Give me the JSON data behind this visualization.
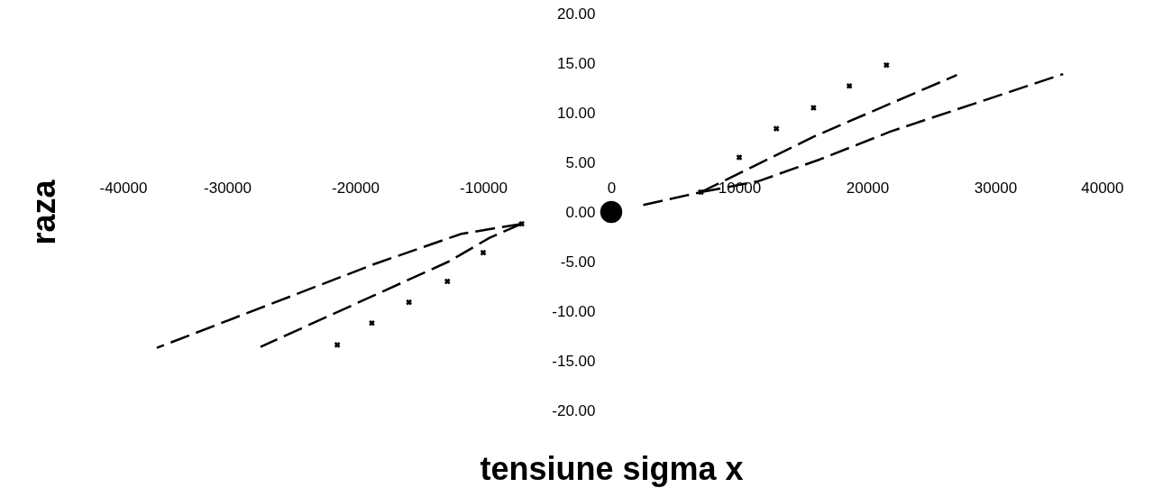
{
  "chart_data": {
    "type": "line",
    "xlabel": "tensiune sigma x",
    "ylabel": "raza",
    "xlim": [
      -40000,
      40000
    ],
    "xticks": [
      -40000,
      -30000,
      -20000,
      -10000,
      0,
      10000,
      20000,
      30000,
      40000
    ],
    "ylim": [
      -20,
      20
    ],
    "yticks": [
      {
        "value": -20,
        "label": "-20.00"
      },
      {
        "value": -15,
        "label": "-15.00"
      },
      {
        "value": -10,
        "label": "-10.00"
      },
      {
        "value": -5,
        "label": "-5.00"
      },
      {
        "value": 0,
        "label": "0.00"
      },
      {
        "value": 5,
        "label": "5.00"
      },
      {
        "value": 10,
        "label": "10.00"
      },
      {
        "value": 15,
        "label": "15.00"
      },
      {
        "value": 20,
        "label": "20.00"
      }
    ],
    "grid": false,
    "series": [
      {
        "line_style": "dashed",
        "color": "#000000",
        "x": [
          7000,
          16000,
          27000
        ],
        "values": [
          2.0,
          7.7,
          13.8
        ]
      },
      {
        "line_style": "dashed",
        "color": "#000000",
        "x": [
          7000,
          11500,
          16300,
          21800,
          35300
        ],
        "values": [
          2.0,
          3.1,
          5.3,
          8.1,
          13.9
        ]
      },
      {
        "line_style": "dashed",
        "color": "#000000",
        "x": [
          -7000,
          -9500,
          -12700,
          -27400
        ],
        "values": [
          -1.2,
          -2.6,
          -5.0,
          -13.6
        ]
      },
      {
        "line_style": "dashed",
        "color": "#000000",
        "x": [
          -7000,
          -11700,
          -18400,
          -35500
        ],
        "values": [
          -1.2,
          -2.2,
          -5.2,
          -13.7
        ]
      },
      {
        "line_style": "dashed",
        "color": "#000000",
        "x": [
          2500,
          7000
        ],
        "values": [
          0.7,
          2.0
        ]
      },
      {
        "type": "scatter",
        "marker": "cross",
        "color": "#000000",
        "x": [
          7000,
          10000,
          12900,
          15800,
          18600,
          21500,
          -7000,
          -10000,
          -12800,
          -15800,
          -18700,
          -21400
        ],
        "values": [
          2.0,
          5.5,
          8.4,
          10.5,
          12.7,
          14.8,
          -1.2,
          -4.1,
          -7.0,
          -9.1,
          -11.2,
          -13.4
        ]
      },
      {
        "type": "scatter",
        "marker": "circle",
        "color": "#000000",
        "x": [
          0
        ],
        "values": [
          0
        ]
      }
    ]
  }
}
